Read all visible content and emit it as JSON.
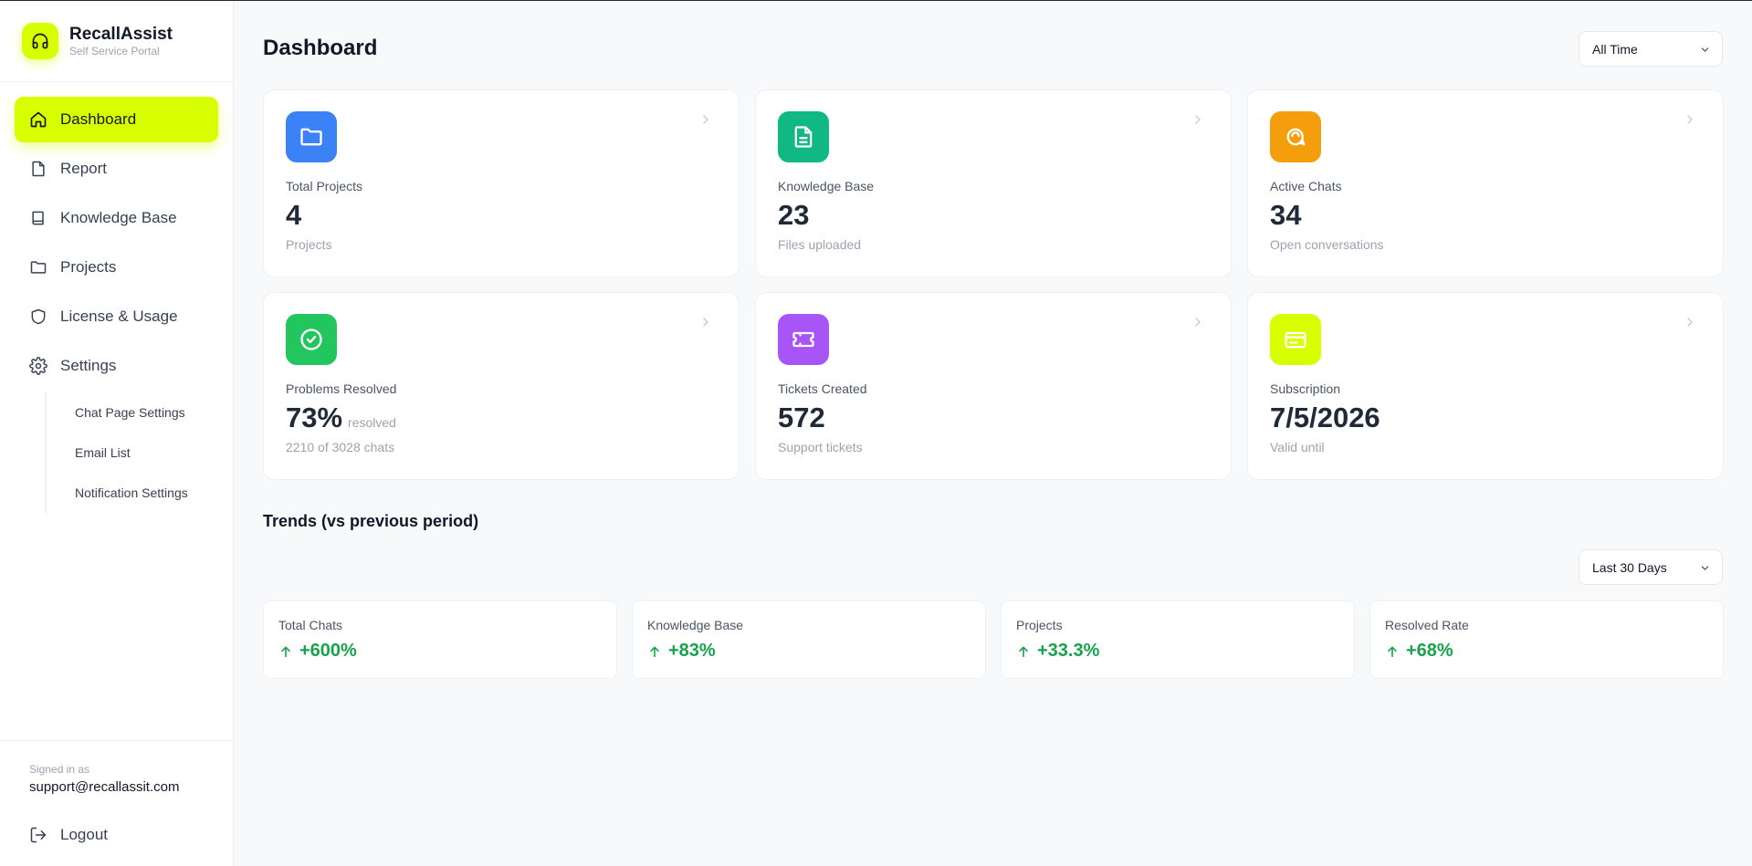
{
  "brand": {
    "name": "RecallAssist",
    "subtitle": "Self Service Portal"
  },
  "sidebar": {
    "items": [
      {
        "label": "Dashboard",
        "icon": "home-icon",
        "active": true
      },
      {
        "label": "Report",
        "icon": "file-icon"
      },
      {
        "label": "Knowledge Base",
        "icon": "book-icon"
      },
      {
        "label": "Projects",
        "icon": "folder-icon"
      },
      {
        "label": "License & Usage",
        "icon": "shield-icon"
      },
      {
        "label": "Settings",
        "icon": "gear-icon"
      }
    ],
    "settings_children": [
      "Chat Page Settings",
      "Email List",
      "Notification Settings"
    ],
    "signed_in_label": "Signed in as",
    "signed_in_email": "support@recallassit.com",
    "logout_label": "Logout"
  },
  "header": {
    "title": "Dashboard",
    "time_filter": "All Time"
  },
  "cards": [
    {
      "label": "Total Projects",
      "value": "4",
      "suffix": "",
      "sub": "Projects",
      "icon": "folder-icon",
      "color": "#3b82f6"
    },
    {
      "label": "Knowledge Base",
      "value": "23",
      "suffix": "",
      "sub": "Files uploaded",
      "icon": "document-icon",
      "color": "#10b981"
    },
    {
      "label": "Active Chats",
      "value": "34",
      "suffix": "",
      "sub": "Open conversations",
      "icon": "chat-bubble-icon",
      "color": "#f59e0b"
    },
    {
      "label": "Problems Resolved",
      "value": "73%",
      "suffix": "resolved",
      "sub": "2210 of 3028 chats",
      "icon": "check-circle-icon",
      "color": "#22c55e"
    },
    {
      "label": "Tickets Created",
      "value": "572",
      "suffix": "",
      "sub": "Support tickets",
      "icon": "ticket-icon",
      "color": "#a855f7"
    },
    {
      "label": "Subscription",
      "value": "7/5/2026",
      "suffix": "",
      "sub": "Valid until",
      "icon": "credit-card-icon",
      "color": "#d8ff00"
    }
  ],
  "trends": {
    "title": "Trends (vs previous period)",
    "range_filter": "Last 30 Days",
    "items": [
      {
        "label": "Total Chats",
        "value": "+600%"
      },
      {
        "label": "Knowledge Base",
        "value": "+83%"
      },
      {
        "label": "Projects",
        "value": "+33.3%"
      },
      {
        "label": "Resolved Rate",
        "value": "+68%"
      }
    ],
    "positive_color": "#16a34a"
  },
  "accent_color": "#d8ff00"
}
